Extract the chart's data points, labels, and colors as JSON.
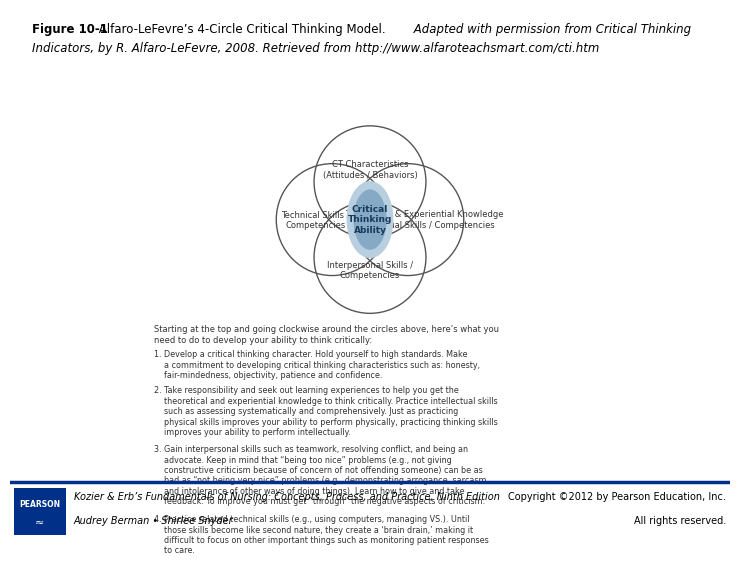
{
  "title_bold": "Figure 10-1",
  "title_normal": "  Alfaro-LeFevre’s 4-Circle Critical Thinking Model.",
  "title_italic": " Adapted with permission from Critical Thinking Indicators, by R. Alfaro-LeFevre, 2008. Retrieved from http://www.alfaroteachsmart.com/cti.htm",
  "circle_top_label": "CT Characteristics\n(Attitudes / Behaviors)",
  "circle_left_label": "Technical Skills /\nCompetencies",
  "circle_right_label": "Theoretical & Experiential Knowledge\nIntellectual Skills / Competencies",
  "circle_bottom_label": "Interpersonal Skills /\nCompetencies",
  "center_label": "Critical\nThinking\nAbility",
  "body_intro": "Starting at the top and going clockwise around the circles above, here’s what you\nneed to do to develop your ability to think critically:",
  "body_items": [
    "1. Develop a critical thinking character. Hold yourself to high standards. Make\n    a commitment to developing critical thinking characteristics such as: honesty,\n    fair-mindedness, objectivity, patience and confidence.",
    "2. Take responsibility and seek out learning experiences to help you get the\n    theoretical and experiential knowledge to think critically. Practice intellectual skills\n    such as assessing systematically and comprehensively. Just as practicing\n    physical skills improves your ability to perform physically, practicing thinking skills\n    improves your ability to perform intellectually.",
    "3. Gain interpersonal skills such as teamwork, resolving conflict, and being an\n    advocate. Keep in mind that “being too nice” problems (e.g., not giving\n    constructive criticism because of concern of not offending someone) can be as\n    bad as “not being very nice” problems (e.g., demonstrating arrogance, sarcasm,\n    and intolerance of other ways of doing things). Learn how to give and take\n    feedback. To improve you must get “through” the negative aspects of criticism.",
    "4. Practice related technical skills (e.g., using computers, managing VS.). Until\n    those skills become like second nature, they create a ‘brain drain,’ making it\n    difficult to focus on other important things such as monitoring patient responses\n    to care."
  ],
  "footer_left1": "Kozier & Erb’s Fundamentals of Nursing: Concepts, Process, and Practice, Ninth Edition",
  "footer_left2": "Audrey Berman • Shirlee Snyder",
  "footer_right1": "Copyright ©2012 by Pearson Education, Inc.",
  "footer_right2": "All rights reserved.",
  "bg_color": "#ffffff",
  "circle_edge_color": "#555555",
  "center_fill_light": "#b8cfe0",
  "center_fill_dark": "#4a7fa8",
  "center_text_color": "#1a3a5c",
  "footer_bar_color": "#003087",
  "pearson_box_color": "#003087"
}
